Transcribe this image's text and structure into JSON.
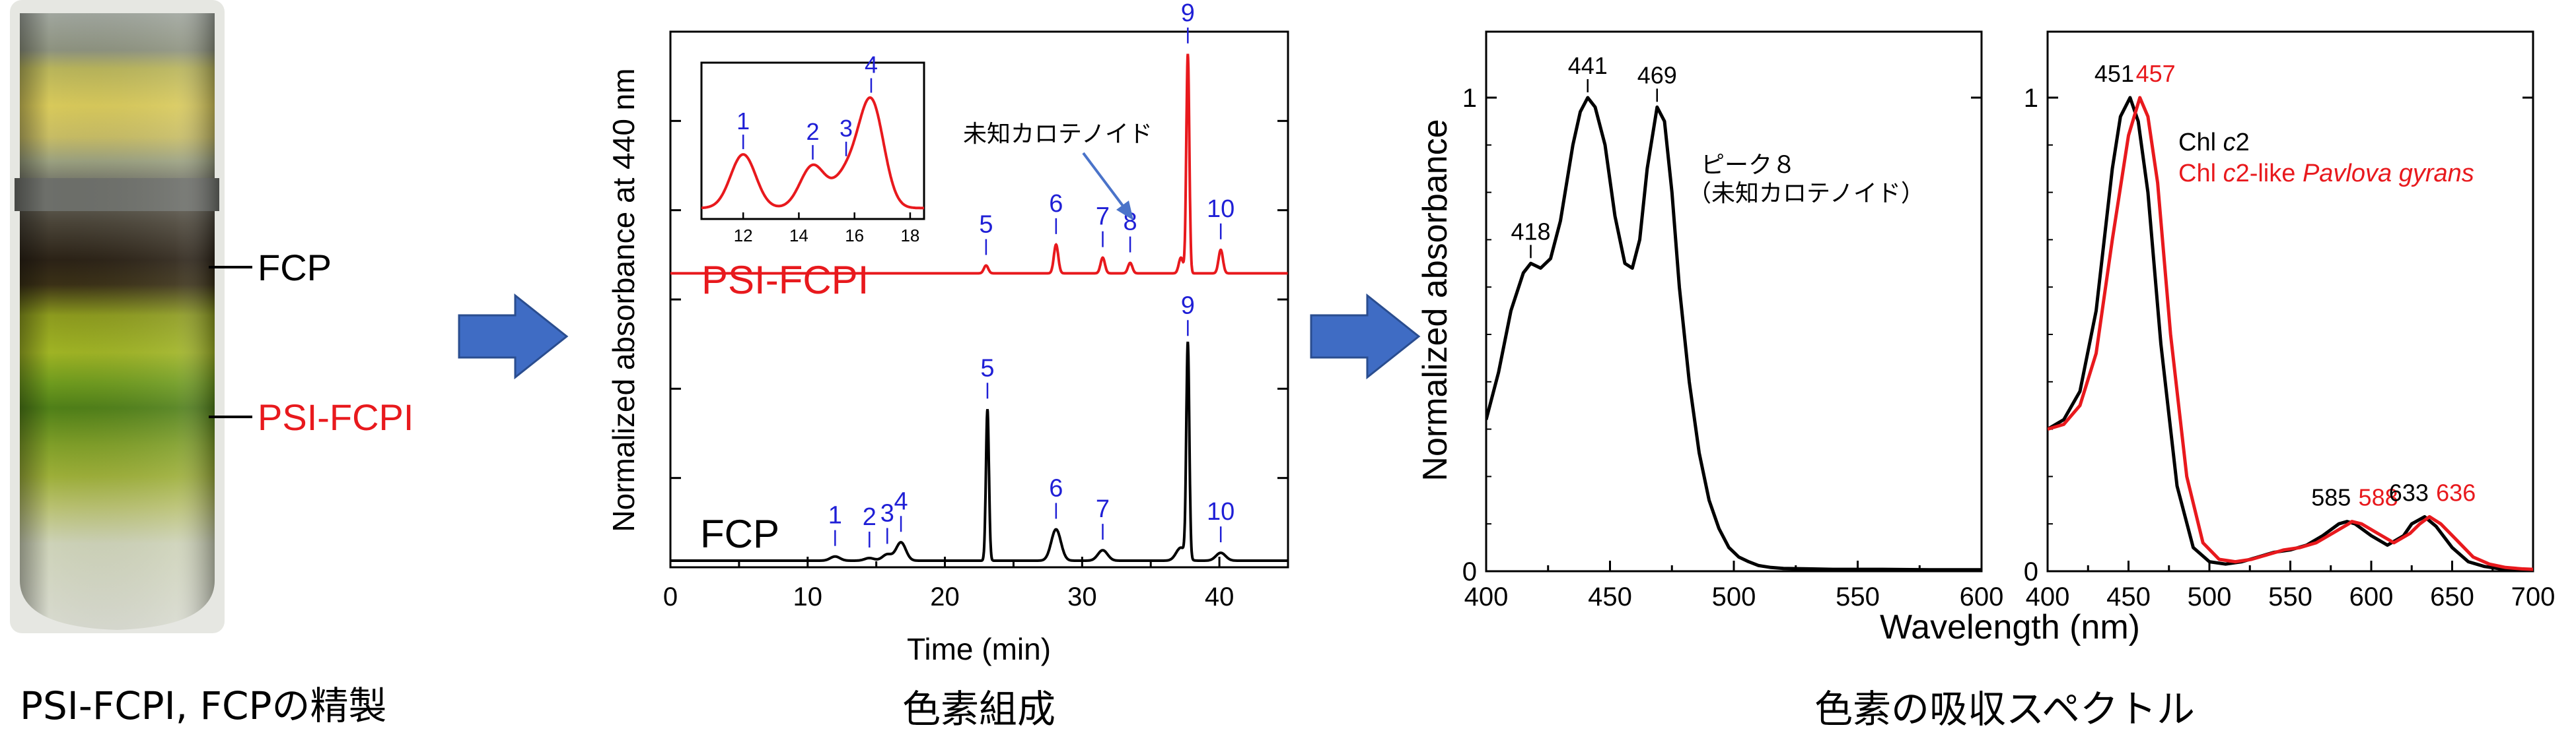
{
  "colors": {
    "black": "#000000",
    "red": "#e8191d",
    "blue": "#1f1fd6",
    "arrow": "#3f6cc4",
    "arrow_edge": "#2a4d8f"
  },
  "captions": {
    "purification": "PSI-FCPI, FCPの精製",
    "composition": "色素組成",
    "spectra": "色素の吸収スペクトル"
  },
  "tube": {
    "label_fcp": "FCP",
    "label_psi": "PSI-FCPI"
  },
  "chart_data": [
    {
      "type": "line",
      "title": "",
      "xlabel": "Time (min)",
      "ylabel": "Normalized absorbance at 440 nm",
      "xlim": [
        0,
        45
      ],
      "xticks": [
        0,
        10,
        20,
        30,
        40
      ],
      "ylim": [
        0,
        1
      ],
      "series": [
        {
          "name": "PSI-FCPI",
          "label": "PSI-FCPI",
          "color": "#e8191d",
          "baseline": 0.55,
          "peaks": [
            {
              "id": "5",
              "t": 23.0,
              "h": 0.015
            },
            {
              "id": "6",
              "t": 28.1,
              "h": 0.055
            },
            {
              "id": "7",
              "t": 31.5,
              "h": 0.03
            },
            {
              "id": "8",
              "t": 33.5,
              "h": 0.02
            },
            {
              "id": "",
              "t": 37.2,
              "h": 0.03
            },
            {
              "id": "9",
              "t": 37.7,
              "h": 0.42
            },
            {
              "id": "10",
              "t": 40.1,
              "h": 0.045
            }
          ]
        },
        {
          "name": "FCP",
          "label": "FCP",
          "color": "#000000",
          "baseline": 0.0,
          "peaks": [
            {
              "id": "1",
              "t": 12.0,
              "h": 0.008
            },
            {
              "id": "2",
              "t": 14.5,
              "h": 0.005
            },
            {
              "id": "3",
              "t": 15.8,
              "h": 0.012
            },
            {
              "id": "4",
              "t": 16.8,
              "h": 0.035
            },
            {
              "id": "5",
              "t": 23.1,
              "h": 0.29
            },
            {
              "id": "6",
              "t": 28.1,
              "h": 0.06
            },
            {
              "id": "7",
              "t": 31.5,
              "h": 0.02
            },
            {
              "id": "",
              "t": 37.2,
              "h": 0.025
            },
            {
              "id": "9",
              "t": 37.7,
              "h": 0.41
            },
            {
              "id": "10",
              "t": 40.1,
              "h": 0.015
            }
          ]
        }
      ],
      "inset": {
        "xlim": [
          10.5,
          18.5
        ],
        "xticks": [
          12,
          14,
          16,
          18
        ],
        "ylim": [
          0,
          1
        ],
        "peaks": [
          {
            "id": "1",
            "t": 12.0,
            "h": 0.38
          },
          {
            "id": "2",
            "t": 14.5,
            "h": 0.3
          },
          {
            "id": "3",
            "t": 15.7,
            "h": 0.22
          },
          {
            "id": "4",
            "t": 16.6,
            "h": 0.75
          }
        ]
      },
      "annotation": "未知カロテノイド"
    },
    {
      "type": "line",
      "title": "",
      "xlabel": "Wavelength (nm)",
      "ylabel": "Normalized absorbance",
      "xlim": [
        400,
        600
      ],
      "xticks": [
        400,
        450,
        500,
        550,
        600
      ],
      "ylim": [
        0,
        1
      ],
      "yticks": [
        0,
        1
      ],
      "series": [
        {
          "name": "ピーク８（未知カロテノイド）",
          "color": "#000000",
          "x": [
            400,
            405,
            410,
            415,
            418,
            422,
            426,
            430,
            435,
            438,
            441,
            444,
            448,
            452,
            456,
            459,
            462,
            465,
            469,
            472,
            475,
            478,
            482,
            486,
            490,
            494,
            498,
            502,
            506,
            510,
            515,
            520,
            530,
            540,
            560,
            580,
            600
          ],
          "y": [
            0.32,
            0.42,
            0.55,
            0.63,
            0.65,
            0.64,
            0.66,
            0.74,
            0.9,
            0.97,
            1.0,
            0.98,
            0.9,
            0.75,
            0.65,
            0.64,
            0.7,
            0.85,
            0.98,
            0.95,
            0.8,
            0.6,
            0.4,
            0.25,
            0.15,
            0.09,
            0.05,
            0.03,
            0.02,
            0.012,
            0.008,
            0.006,
            0.005,
            0.004,
            0.004,
            0.003,
            0.003
          ]
        }
      ],
      "peak_labels": [
        {
          "value": "418",
          "x": 418,
          "y": 0.65
        },
        {
          "value": "441",
          "x": 441,
          "y": 1.0
        },
        {
          "value": "469",
          "x": 469,
          "y": 0.98
        }
      ],
      "legend_line1": "ピーク８",
      "legend_line2": "（未知カロテノイド）"
    },
    {
      "type": "line",
      "title": "",
      "xlabel": "Wavelength (nm)",
      "ylabel": "",
      "xlim": [
        400,
        700
      ],
      "xticks": [
        400,
        450,
        500,
        550,
        600,
        650,
        700
      ],
      "ylim": [
        0,
        1
      ],
      "yticks": [
        0,
        1
      ],
      "series": [
        {
          "name": "Chl c2",
          "color": "#000000",
          "x": [
            400,
            410,
            420,
            430,
            440,
            445,
            451,
            456,
            462,
            470,
            480,
            490,
            500,
            510,
            520,
            530,
            540,
            550,
            560,
            570,
            580,
            585,
            590,
            600,
            610,
            620,
            625,
            633,
            640,
            650,
            660,
            670,
            680,
            690,
            700
          ],
          "y": [
            0.3,
            0.32,
            0.38,
            0.55,
            0.85,
            0.96,
            1.0,
            0.95,
            0.8,
            0.48,
            0.18,
            0.05,
            0.02,
            0.015,
            0.02,
            0.03,
            0.04,
            0.045,
            0.055,
            0.075,
            0.1,
            0.105,
            0.1,
            0.075,
            0.055,
            0.075,
            0.1,
            0.115,
            0.095,
            0.05,
            0.02,
            0.01,
            0.005,
            0.003,
            0.002
          ]
        },
        {
          "name": "Chl c2-like Pavlova gyrans",
          "color": "#e8191d",
          "x": [
            400,
            410,
            420,
            430,
            440,
            450,
            457,
            462,
            468,
            476,
            486,
            496,
            506,
            516,
            526,
            536,
            546,
            556,
            566,
            576,
            586,
            588,
            594,
            604,
            614,
            624,
            630,
            636,
            643,
            653,
            663,
            673,
            683,
            693,
            700
          ],
          "y": [
            0.3,
            0.31,
            0.35,
            0.46,
            0.7,
            0.92,
            1.0,
            0.96,
            0.82,
            0.5,
            0.2,
            0.06,
            0.025,
            0.02,
            0.025,
            0.035,
            0.045,
            0.05,
            0.06,
            0.08,
            0.1,
            0.105,
            0.1,
            0.08,
            0.06,
            0.08,
            0.1,
            0.115,
            0.1,
            0.065,
            0.03,
            0.015,
            0.008,
            0.005,
            0.004
          ]
        }
      ],
      "peak_labels": [
        {
          "value": "451",
          "x": 451,
          "color": "#000000"
        },
        {
          "value": "457",
          "x": 457,
          "color": "#e8191d"
        },
        {
          "value": "585",
          "x": 585,
          "color": "#000000"
        },
        {
          "value": "588",
          "x": 588,
          "color": "#e8191d"
        },
        {
          "value": "633",
          "x": 633,
          "color": "#000000"
        },
        {
          "value": "636",
          "x": 636,
          "color": "#e8191d"
        }
      ],
      "legend": [
        {
          "prefix": "Chl ",
          "italic": "c",
          "suffix": "2",
          "color": "#000000"
        },
        {
          "prefix": "Chl ",
          "italic": "c",
          "suffix": "2-like ",
          "species": "Pavlova gyrans",
          "color": "#e8191d"
        }
      ]
    }
  ]
}
